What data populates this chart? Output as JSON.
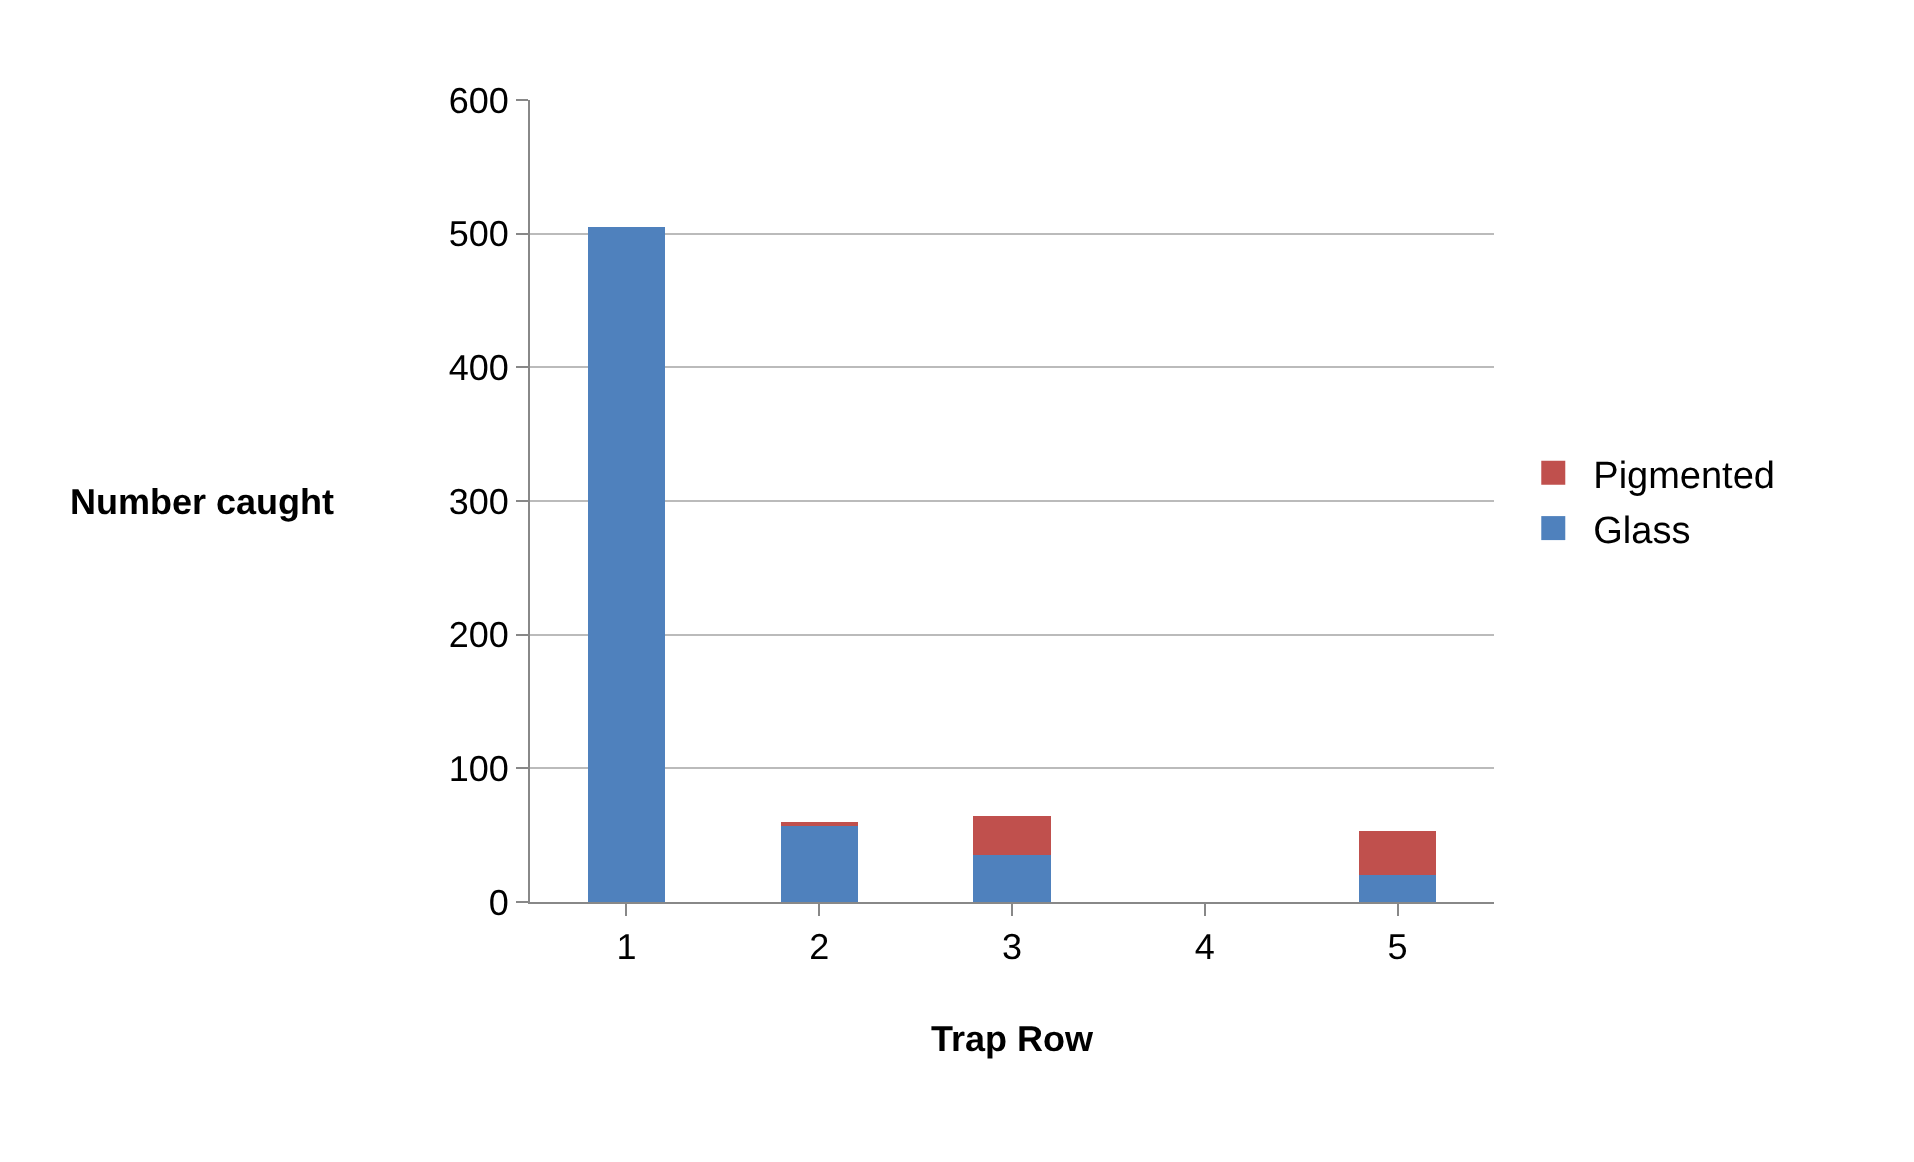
{
  "chart_data": {
    "type": "bar",
    "stacked": true,
    "xlabel": "Trap Row",
    "ylabel": "Number caught",
    "categories": [
      "1",
      "2",
      "3",
      "4",
      "5"
    ],
    "series": [
      {
        "name": "Glass",
        "color": "#4f81bd",
        "values": [
          505,
          58,
          35,
          0,
          20
        ]
      },
      {
        "name": "Pigmented",
        "color": "#c0504d",
        "values": [
          0,
          2,
          29,
          0,
          33
        ]
      }
    ],
    "ylim": [
      0,
      600
    ],
    "yticks": [
      0,
      100,
      200,
      300,
      400,
      500,
      600
    ],
    "grid": "y",
    "legend": "right"
  }
}
